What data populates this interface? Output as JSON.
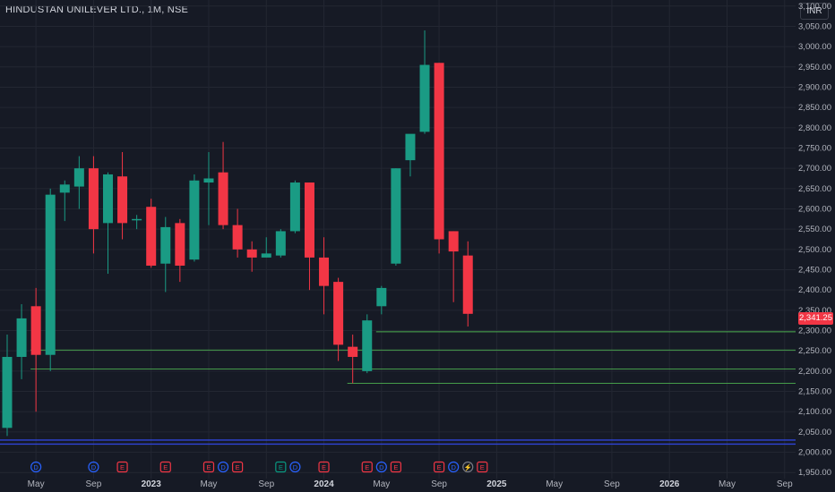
{
  "header": {
    "title": "HINDUSTAN UNILEVER LTD., 1M, NSE",
    "currency": "INR"
  },
  "last_price_label": "2,341.25",
  "colors": {
    "up": "#1a9b84",
    "down": "#f23645",
    "hline": "#4caf50",
    "band": "#2f44d8",
    "bg": "#161a25",
    "grid": "#232732"
  },
  "event_markers": [
    {
      "label": "D",
      "color": "#2962ff",
      "at": "2022-05"
    },
    {
      "label": "D",
      "color": "#2962ff",
      "at": "2022-09"
    },
    {
      "label": "E",
      "color": "#f23645",
      "at": "2022-11"
    },
    {
      "label": "E",
      "color": "#f23645",
      "at": "2023-02"
    },
    {
      "label": "E",
      "color": "#f23645",
      "at": "2023-05"
    },
    {
      "label": "D",
      "color": "#2962ff",
      "at": "2023-06"
    },
    {
      "label": "E",
      "color": "#f23645",
      "at": "2023-07"
    },
    {
      "label": "E",
      "color": "#089981",
      "at": "2023-10"
    },
    {
      "label": "D",
      "color": "#2962ff",
      "at": "2023-11"
    },
    {
      "label": "E",
      "color": "#f23645",
      "at": "2024-01"
    },
    {
      "label": "E",
      "color": "#f23645",
      "at": "2024-04"
    },
    {
      "label": "D",
      "color": "#2962ff",
      "at": "2024-05"
    },
    {
      "label": "E",
      "color": "#f23645",
      "at": "2024-06"
    },
    {
      "label": "E",
      "color": "#f23645",
      "at": "2024-09"
    },
    {
      "label": "D",
      "color": "#2962ff",
      "at": "2024-10"
    },
    {
      "label": "⚡",
      "color": "#787b86",
      "at": "2024-11"
    },
    {
      "label": "E",
      "color": "#f23645",
      "at": "2024-12"
    }
  ],
  "chart_data": {
    "type": "candlestick",
    "title": "HINDUSTAN UNILEVER LTD., 1M, NSE",
    "ylim": [
      1935,
      3115
    ],
    "y_ticks": [
      "1,950.00",
      "2,000.00",
      "2,050.00",
      "2,100.00",
      "2,150.00",
      "2,200.00",
      "2,250.00",
      "2,300.00",
      "2,350.00",
      "2,400.00",
      "2,450.00",
      "2,500.00",
      "2,550.00",
      "2,600.00",
      "2,650.00",
      "2,700.00",
      "2,750.00",
      "2,800.00",
      "2,850.00",
      "2,900.00",
      "2,950.00",
      "3,000.00",
      "3,050.00",
      "3,100.00"
    ],
    "y_tick_values": [
      1950,
      2000,
      2050,
      2100,
      2150,
      2200,
      2250,
      2300,
      2350,
      2400,
      2450,
      2500,
      2550,
      2600,
      2650,
      2700,
      2750,
      2800,
      2850,
      2900,
      2950,
      3000,
      3050,
      3100
    ],
    "x_ticks": [
      {
        "label": "May",
        "at": "2022-05",
        "year": false
      },
      {
        "label": "Sep",
        "at": "2022-09",
        "year": false
      },
      {
        "label": "2023",
        "at": "2023-01",
        "year": true
      },
      {
        "label": "May",
        "at": "2023-05",
        "year": false
      },
      {
        "label": "Sep",
        "at": "2023-09",
        "year": false
      },
      {
        "label": "2024",
        "at": "2024-01",
        "year": true
      },
      {
        "label": "May",
        "at": "2024-05",
        "year": false
      },
      {
        "label": "Sep",
        "at": "2024-09",
        "year": false
      },
      {
        "label": "2025",
        "at": "2025-01",
        "year": true
      },
      {
        "label": "May",
        "at": "2025-05",
        "year": false
      },
      {
        "label": "Sep",
        "at": "2025-09",
        "year": false
      },
      {
        "label": "2026",
        "at": "2026-01",
        "year": true
      },
      {
        "label": "May",
        "at": "2026-05",
        "year": false
      },
      {
        "label": "Sep",
        "at": "2026-09",
        "year": false
      }
    ],
    "candles": [
      {
        "t": "2022-03",
        "o": 2060,
        "h": 2290,
        "l": 2040,
        "c": 2235
      },
      {
        "t": "2022-04",
        "o": 2235,
        "h": 2365,
        "l": 2180,
        "c": 2330
      },
      {
        "t": "2022-05",
        "o": 2360,
        "h": 2405,
        "l": 2100,
        "c": 2240
      },
      {
        "t": "2022-06",
        "o": 2240,
        "h": 2650,
        "l": 2200,
        "c": 2635
      },
      {
        "t": "2022-07",
        "o": 2640,
        "h": 2670,
        "l": 2570,
        "c": 2660
      },
      {
        "t": "2022-08",
        "o": 2655,
        "h": 2730,
        "l": 2600,
        "c": 2700
      },
      {
        "t": "2022-09",
        "o": 2700,
        "h": 2730,
        "l": 2490,
        "c": 2550
      },
      {
        "t": "2022-10",
        "o": 2565,
        "h": 2690,
        "l": 2440,
        "c": 2685
      },
      {
        "t": "2022-11",
        "o": 2680,
        "h": 2740,
        "l": 2525,
        "c": 2565
      },
      {
        "t": "2022-12",
        "o": 2575,
        "h": 2585,
        "l": 2550,
        "c": 2575
      },
      {
        "t": "2023-01",
        "o": 2605,
        "h": 2625,
        "l": 2455,
        "c": 2460
      },
      {
        "t": "2023-02",
        "o": 2465,
        "h": 2580,
        "l": 2395,
        "c": 2555
      },
      {
        "t": "2023-03",
        "o": 2565,
        "h": 2575,
        "l": 2420,
        "c": 2460
      },
      {
        "t": "2023-04",
        "o": 2475,
        "h": 2685,
        "l": 2470,
        "c": 2670
      },
      {
        "t": "2023-05",
        "o": 2665,
        "h": 2740,
        "l": 2560,
        "c": 2675
      },
      {
        "t": "2023-06",
        "o": 2690,
        "h": 2765,
        "l": 2550,
        "c": 2560
      },
      {
        "t": "2023-07",
        "o": 2560,
        "h": 2600,
        "l": 2480,
        "c": 2500
      },
      {
        "t": "2023-08",
        "o": 2500,
        "h": 2520,
        "l": 2445,
        "c": 2480
      },
      {
        "t": "2023-09",
        "o": 2480,
        "h": 2530,
        "l": 2480,
        "c": 2490
      },
      {
        "t": "2023-10",
        "o": 2485,
        "h": 2550,
        "l": 2480,
        "c": 2545
      },
      {
        "t": "2023-11",
        "o": 2545,
        "h": 2670,
        "l": 2540,
        "c": 2665
      },
      {
        "t": "2023-12",
        "o": 2665,
        "h": 2665,
        "l": 2400,
        "c": 2480
      },
      {
        "t": "2024-01",
        "o": 2480,
        "h": 2530,
        "l": 2340,
        "c": 2410
      },
      {
        "t": "2024-02",
        "o": 2420,
        "h": 2430,
        "l": 2225,
        "c": 2265
      },
      {
        "t": "2024-03",
        "o": 2260,
        "h": 2290,
        "l": 2170,
        "c": 2235
      },
      {
        "t": "2024-04",
        "o": 2200,
        "h": 2340,
        "l": 2195,
        "c": 2325
      },
      {
        "t": "2024-05",
        "o": 2360,
        "h": 2410,
        "l": 2340,
        "c": 2405
      },
      {
        "t": "2024-06",
        "o": 2465,
        "h": 2700,
        "l": 2460,
        "c": 2700
      },
      {
        "t": "2024-07",
        "o": 2720,
        "h": 2775,
        "l": 2680,
        "c": 2785
      },
      {
        "t": "2024-08",
        "o": 2790,
        "h": 3040,
        "l": 2785,
        "c": 2955
      },
      {
        "t": "2024-09",
        "o": 2960,
        "h": 2960,
        "l": 2490,
        "c": 2525
      },
      {
        "t": "2024-10",
        "o": 2545,
        "h": 2545,
        "l": 2370,
        "c": 2495
      },
      {
        "t": "2024-11",
        "o": 2485,
        "h": 2520,
        "l": 2310,
        "c": 2341.25
      }
    ],
    "horizontal_lines": [
      {
        "y": 2297,
        "from": "2024-05"
      },
      {
        "y": 2252,
        "from": "2022-05"
      },
      {
        "y": 2205,
        "from": "2022-05"
      },
      {
        "y": 2170,
        "from": "2024-03"
      }
    ],
    "bands": [
      2030,
      2020
    ],
    "last_price": 2341.25
  }
}
